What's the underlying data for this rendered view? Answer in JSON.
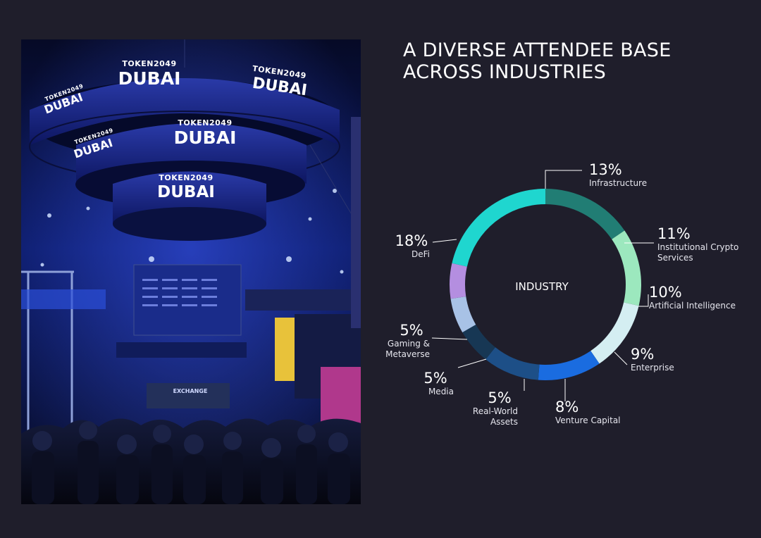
{
  "title": {
    "line1": "A DIVERSE ATTENDEE BASE",
    "line2": "ACROSS INDUSTRIES"
  },
  "photo": {
    "ring_brand_top": "TOKEN2049",
    "ring_brand_main": "DUBAI",
    "exhibit_sign": "EXCHANGE"
  },
  "chart_data": {
    "type": "pie",
    "center_label": "INDUSTRY",
    "slices": [
      {
        "label": "Infrastructure",
        "label_lines": [
          "Infrastructure"
        ],
        "value": 13,
        "value_label": "13%",
        "color": "#217d74"
      },
      {
        "label": "Institutional Crypto Services",
        "label_lines": [
          "Institutional Crypto",
          "Services"
        ],
        "value": 11,
        "value_label": "11%",
        "color": "#9ce8be"
      },
      {
        "label": "Artificial Intelligence",
        "label_lines": [
          "Artificial Intelligence"
        ],
        "value": 10,
        "value_label": "10%",
        "color": "#d4eef2"
      },
      {
        "label": "Enterprise",
        "label_lines": [
          "Enterprise"
        ],
        "value": 9,
        "value_label": "9%",
        "color": "#1a6ce0"
      },
      {
        "label": "Venture Capital",
        "label_lines": [
          "Venture Capital"
        ],
        "value": 8,
        "value_label": "8%",
        "color": "#1d4f87"
      },
      {
        "label": "Real-World Assets",
        "label_lines": [
          "Real-World",
          "Assets"
        ],
        "value": 5,
        "value_label": "5%",
        "color": "#173754"
      },
      {
        "label": "Media",
        "label_lines": [
          "Media"
        ],
        "value": 5,
        "value_label": "5%",
        "color": "#a8c2e6"
      },
      {
        "label": "Gaming & Metaverse",
        "label_lines": [
          "Gaming &",
          "Metaverse"
        ],
        "value": 5,
        "value_label": "5%",
        "color": "#b48ee0"
      },
      {
        "label": "DeFi",
        "label_lines": [
          "DeFi"
        ],
        "value": 18,
        "value_label": "18%",
        "color": "#1fd6cf"
      }
    ]
  }
}
